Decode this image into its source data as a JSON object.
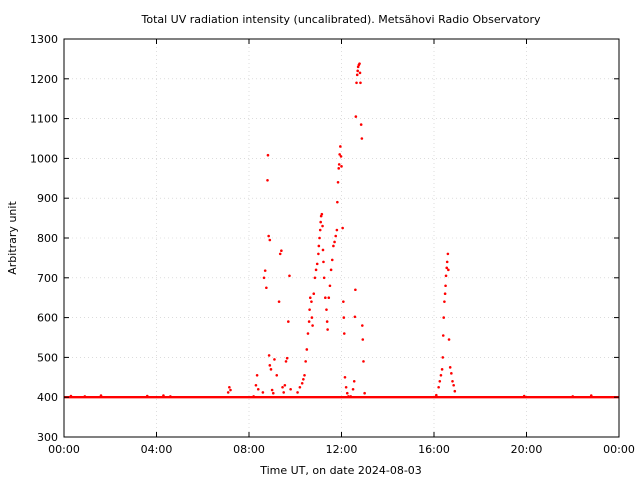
{
  "chart_data": {
    "type": "scatter",
    "title": "Total UV radiation intensity (uncalibrated). Metsähovi Radio Observatory",
    "xlabel": "Time UT, on date 2024-08-03",
    "ylabel": "Arbitrary unit",
    "xlim": [
      0,
      24
    ],
    "ylim": [
      300,
      1300
    ],
    "grid": true,
    "x_ticks": [
      {
        "value": 0,
        "label": "00:00"
      },
      {
        "value": 4,
        "label": "04:00"
      },
      {
        "value": 8,
        "label": "08:00"
      },
      {
        "value": 12,
        "label": "12:00"
      },
      {
        "value": 16,
        "label": "16:00"
      },
      {
        "value": 20,
        "label": "20:00"
      },
      {
        "value": 24,
        "label": "00:00"
      }
    ],
    "y_ticks": [
      300,
      400,
      500,
      600,
      700,
      800,
      900,
      1000,
      1100,
      1200,
      1300
    ],
    "baseline": {
      "value": 400,
      "x_from": 0,
      "x_to": 24
    },
    "marker_color": "#ff0000",
    "points": [
      [
        0.3,
        403
      ],
      [
        0.9,
        402
      ],
      [
        1.6,
        404
      ],
      [
        3.6,
        403
      ],
      [
        4.3,
        404
      ],
      [
        4.6,
        402
      ],
      [
        7.1,
        412
      ],
      [
        7.15,
        425
      ],
      [
        7.2,
        418
      ],
      [
        8.2,
        402
      ],
      [
        8.3,
        430
      ],
      [
        8.35,
        455
      ],
      [
        8.4,
        420
      ],
      [
        8.6,
        412
      ],
      [
        8.65,
        700
      ],
      [
        8.7,
        718
      ],
      [
        8.75,
        675
      ],
      [
        8.8,
        945
      ],
      [
        8.82,
        1008
      ],
      [
        8.85,
        805
      ],
      [
        8.9,
        795
      ],
      [
        8.87,
        505
      ],
      [
        8.9,
        480
      ],
      [
        8.95,
        470
      ],
      [
        9.0,
        418
      ],
      [
        9.05,
        410
      ],
      [
        9.1,
        495
      ],
      [
        9.2,
        455
      ],
      [
        9.3,
        640
      ],
      [
        9.35,
        760
      ],
      [
        9.4,
        768
      ],
      [
        9.45,
        425
      ],
      [
        9.5,
        412
      ],
      [
        9.55,
        430
      ],
      [
        9.6,
        490
      ],
      [
        9.65,
        498
      ],
      [
        9.7,
        590
      ],
      [
        9.75,
        705
      ],
      [
        9.8,
        420
      ],
      [
        10.1,
        412
      ],
      [
        10.2,
        425
      ],
      [
        10.3,
        435
      ],
      [
        10.35,
        445
      ],
      [
        10.4,
        455
      ],
      [
        10.45,
        490
      ],
      [
        10.5,
        520
      ],
      [
        10.55,
        560
      ],
      [
        10.6,
        590
      ],
      [
        10.62,
        620
      ],
      [
        10.65,
        650
      ],
      [
        10.7,
        640
      ],
      [
        10.72,
        600
      ],
      [
        10.75,
        580
      ],
      [
        10.8,
        660
      ],
      [
        10.85,
        700
      ],
      [
        10.9,
        720
      ],
      [
        10.95,
        735
      ],
      [
        11.0,
        760
      ],
      [
        11.02,
        780
      ],
      [
        11.05,
        800
      ],
      [
        11.08,
        820
      ],
      [
        11.1,
        840
      ],
      [
        11.12,
        855
      ],
      [
        11.15,
        860
      ],
      [
        11.18,
        830
      ],
      [
        11.2,
        770
      ],
      [
        11.22,
        740
      ],
      [
        11.25,
        700
      ],
      [
        11.3,
        650
      ],
      [
        11.35,
        620
      ],
      [
        11.38,
        590
      ],
      [
        11.4,
        570
      ],
      [
        11.45,
        650
      ],
      [
        11.5,
        680
      ],
      [
        11.55,
        720
      ],
      [
        11.6,
        745
      ],
      [
        11.65,
        780
      ],
      [
        11.7,
        790
      ],
      [
        11.75,
        805
      ],
      [
        11.8,
        820
      ],
      [
        11.82,
        890
      ],
      [
        11.85,
        940
      ],
      [
        11.88,
        975
      ],
      [
        11.9,
        985
      ],
      [
        11.92,
        1010
      ],
      [
        11.95,
        1030
      ],
      [
        11.98,
        1005
      ],
      [
        12.0,
        980
      ],
      [
        12.05,
        825
      ],
      [
        12.08,
        640
      ],
      [
        12.1,
        600
      ],
      [
        12.12,
        560
      ],
      [
        12.15,
        450
      ],
      [
        12.2,
        425
      ],
      [
        12.25,
        410
      ],
      [
        12.3,
        402
      ],
      [
        12.4,
        402
      ],
      [
        12.5,
        420
      ],
      [
        12.55,
        440
      ],
      [
        12.58,
        602
      ],
      [
        12.6,
        670
      ],
      [
        12.62,
        1105
      ],
      [
        12.65,
        1190
      ],
      [
        12.68,
        1210
      ],
      [
        12.7,
        1220
      ],
      [
        12.72,
        1230
      ],
      [
        12.75,
        1235
      ],
      [
        12.78,
        1238
      ],
      [
        12.8,
        1215
      ],
      [
        12.82,
        1190
      ],
      [
        12.85,
        1085
      ],
      [
        12.88,
        1050
      ],
      [
        12.9,
        580
      ],
      [
        12.92,
        545
      ],
      [
        12.95,
        490
      ],
      [
        13.0,
        410
      ],
      [
        16.1,
        405
      ],
      [
        16.2,
        425
      ],
      [
        16.25,
        440
      ],
      [
        16.3,
        455
      ],
      [
        16.35,
        470
      ],
      [
        16.38,
        500
      ],
      [
        16.4,
        555
      ],
      [
        16.42,
        600
      ],
      [
        16.45,
        640
      ],
      [
        16.48,
        660
      ],
      [
        16.5,
        680
      ],
      [
        16.52,
        705
      ],
      [
        16.55,
        725
      ],
      [
        16.57,
        740
      ],
      [
        16.6,
        760
      ],
      [
        16.62,
        720
      ],
      [
        16.65,
        545
      ],
      [
        16.7,
        475
      ],
      [
        16.75,
        460
      ],
      [
        16.8,
        440
      ],
      [
        16.85,
        430
      ],
      [
        16.9,
        415
      ],
      [
        19.9,
        403
      ],
      [
        22.0,
        402
      ],
      [
        22.8,
        404
      ]
    ]
  }
}
